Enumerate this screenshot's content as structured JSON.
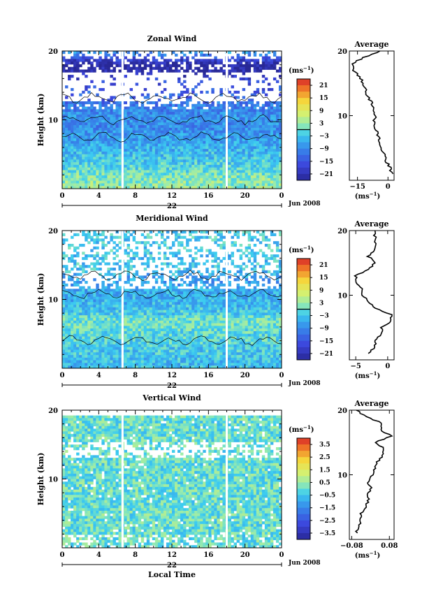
{
  "chart_data": [
    {
      "type": "heatmap",
      "title": "Zonal Wind",
      "ylabel": "Height (km)",
      "ylim": [
        0,
        20
      ],
      "y_ticks": [
        "10",
        "20"
      ],
      "x_ticks": [
        "0",
        "4",
        "8",
        "12",
        "16",
        "20",
        "0"
      ],
      "xlim_hours": [
        0,
        24
      ],
      "date_label": "22",
      "date_suffix": "Jun 2008",
      "colorbar": {
        "units": "(ms-1)",
        "units_base": "(ms",
        "units_exp": "−1",
        "units_close": ")",
        "ticks": [
          "21",
          "15",
          "9",
          "3",
          "−3",
          "−9",
          "−15",
          "−21"
        ],
        "range": [
          -24,
          24
        ],
        "zero_line": true
      },
      "profile": {
        "title": "Average",
        "x_ticks": [
          "−15",
          "0"
        ],
        "x_tick_values": [
          -15,
          0
        ],
        "xlim": [
          -19,
          3
        ],
        "xlabel": "(ms-1)",
        "xlabel_base": "(ms",
        "xlabel_exp": "−1",
        "xlabel_close": ")",
        "y_ticks": [
          "10",
          "20"
        ],
        "heights_km": [
          1,
          2,
          3,
          4,
          5,
          6,
          7,
          8,
          9,
          10,
          11,
          12,
          13,
          14,
          15,
          16,
          17,
          18,
          19,
          20
        ],
        "values": [
          2,
          1,
          -1,
          -2,
          -3,
          -4,
          -5,
          -6,
          -7,
          -6,
          -7,
          -8,
          -10,
          -11,
          -12,
          -14,
          -17,
          -18,
          -12,
          -4
        ]
      },
      "colors": [
        "#3b3bdb",
        "#37c6ef",
        "#aef0a0",
        "#f3de4a",
        "#e63b2b"
      ]
    },
    {
      "type": "heatmap",
      "title": "Meridional Wind",
      "ylabel": "Height (km)",
      "ylim": [
        0,
        20
      ],
      "y_ticks": [
        "10",
        "20"
      ],
      "x_ticks": [
        "0",
        "4",
        "8",
        "12",
        "16",
        "20",
        "0"
      ],
      "xlim_hours": [
        0,
        24
      ],
      "date_label": "22",
      "date_suffix": "Jun 2008",
      "colorbar": {
        "units": "(ms-1)",
        "units_base": "(ms",
        "units_exp": "−1",
        "units_close": ")",
        "ticks": [
          "21",
          "15",
          "9",
          "3",
          "−3",
          "−9",
          "−15",
          "−21"
        ],
        "range": [
          -24,
          24
        ],
        "zero_line": true
      },
      "profile": {
        "title": "Average",
        "x_ticks": [
          "−5",
          "0"
        ],
        "x_tick_values": [
          -5,
          0
        ],
        "xlim": [
          -6,
          1
        ],
        "xlabel": "(ms-1)",
        "xlabel_base": "(ms",
        "xlabel_exp": "−1",
        "xlabel_close": ")",
        "y_ticks": [
          "10",
          "20"
        ],
        "heights_km": [
          1,
          2,
          3,
          4,
          5,
          6,
          7,
          8,
          9,
          10,
          11,
          12,
          13,
          14,
          15,
          16,
          17,
          18,
          19,
          20
        ],
        "values": [
          -3,
          -2,
          -2,
          -1,
          -1,
          0.5,
          0.5,
          -2,
          -3,
          -4,
          -4,
          -5,
          -5,
          -3,
          -2,
          -3,
          -2,
          -2,
          -2,
          -2
        ]
      }
    },
    {
      "type": "heatmap",
      "title": "Vertical Wind",
      "ylabel": "Height (km)",
      "ylim": [
        0,
        20
      ],
      "y_ticks": [
        "10",
        "20"
      ],
      "x_ticks": [
        "0",
        "4",
        "8",
        "12",
        "16",
        "20",
        "0"
      ],
      "xlim_hours": [
        0,
        24
      ],
      "date_label": "22",
      "date_suffix": "Jun 2008",
      "xlabel": "Local Time",
      "colorbar": {
        "units": "(ms-1)",
        "units_base": "(ms",
        "units_exp": "−1",
        "units_close": ")",
        "ticks": [
          "3.5",
          "2.5",
          "1.5",
          "0.5",
          "−0.5",
          "−1.5",
          "−2.5",
          "−3.5"
        ],
        "range": [
          -4,
          4
        ],
        "zero_line": false
      },
      "profile": {
        "title": "Average",
        "x_ticks": [
          "−0.08",
          "0.08"
        ],
        "x_tick_values": [
          -0.08,
          0.08
        ],
        "xlim": [
          -0.09,
          0.1
        ],
        "xlabel": "(ms-1)",
        "xlabel_base": "(ms",
        "xlabel_exp": "−1",
        "xlabel_close": ")",
        "y_ticks": [
          "10",
          "20"
        ],
        "heights_km": [
          1,
          2,
          3,
          4,
          5,
          6,
          7,
          8,
          9,
          10,
          11,
          12,
          13,
          14,
          15,
          16,
          17,
          18,
          19,
          20
        ],
        "values": [
          -0.06,
          -0.05,
          -0.04,
          -0.04,
          -0.02,
          -0.01,
          -0.01,
          0.0,
          -0.01,
          0.01,
          0.02,
          0.03,
          0.05,
          0.06,
          0.02,
          0.09,
          0.04,
          0.05,
          -0.02,
          -0.06
        ]
      }
    }
  ]
}
